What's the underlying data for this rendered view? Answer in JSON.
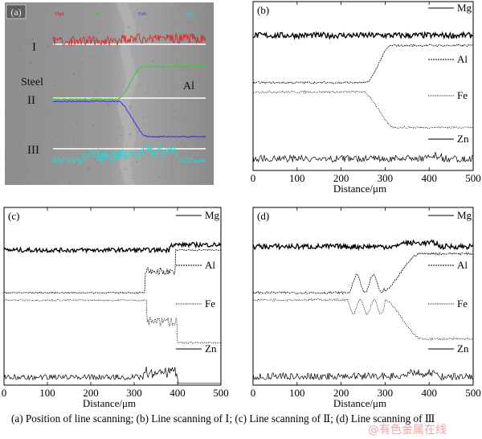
{
  "panel_a": {
    "label": "(a)",
    "legend": [
      "MgK",
      "AlK",
      "FeK",
      "ZnK"
    ],
    "legend_colors": [
      "#e02020",
      "#2ed12e",
      "#3434e0",
      "#22d8d8"
    ],
    "markers": [
      "I",
      "II",
      "III"
    ],
    "steel_label": "Steel",
    "al_label": "Al"
  },
  "chart_data": [
    {
      "type": "line",
      "panel_label": "(b)",
      "xlabel": "Distance/μm",
      "xlim": [
        0,
        500
      ],
      "xticks": [
        0,
        100,
        200,
        300,
        400,
        500
      ],
      "series": [
        {
          "name": "Mg",
          "description_level": "high ~constant"
        },
        {
          "name": "Al",
          "transition": [
            255,
            320
          ]
        },
        {
          "name": "Fe",
          "transition": [
            250,
            320
          ]
        },
        {
          "name": "Zn",
          "description_level": "near baseline noise"
        }
      ]
    },
    {
      "type": "line",
      "panel_label": "(c)",
      "xlabel": "Distance/μm",
      "xlim": [
        0,
        500
      ],
      "xticks": [
        0,
        100,
        200,
        300,
        400,
        500
      ],
      "series": [
        {
          "name": "Mg"
        },
        {
          "name": "Al",
          "transition": [
            325,
            395
          ]
        },
        {
          "name": "Fe",
          "transition": [
            325,
            400
          ]
        },
        {
          "name": "Zn",
          "transition": [
            325,
            400
          ]
        }
      ]
    },
    {
      "type": "line",
      "panel_label": "(d)",
      "xlabel": "Distance/μm",
      "xlim": [
        0,
        500
      ],
      "xticks": [
        0,
        100,
        200,
        300,
        400,
        500
      ],
      "series": [
        {
          "name": "Mg"
        },
        {
          "name": "Al",
          "transition": [
            210,
            380
          ]
        },
        {
          "name": "Fe",
          "transition": [
            210,
            380
          ]
        },
        {
          "name": "Zn"
        }
      ]
    }
  ],
  "caption": "(a) Position of line scanning; (b) Line scanning of Ⅰ; (c) Line scanning of Ⅱ; (d) Line scanning of Ⅲ",
  "watermark": "@有色金属在线"
}
